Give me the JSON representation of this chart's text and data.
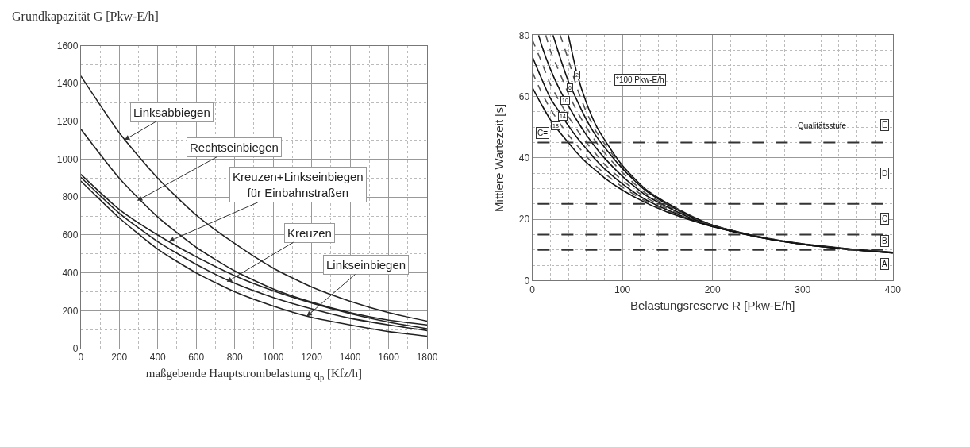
{
  "chart_data": [
    {
      "type": "line",
      "ylabel": "Grundkapazität G [Pkw-E/h]",
      "xlabel": "maßgebende Hauptstrombelastung q$_{p}$ [Kfz/h]",
      "x": [
        0,
        200,
        400,
        600,
        800,
        1000,
        1200,
        1400,
        1600,
        1800
      ],
      "series": [
        {
          "color": "#222222",
          "values": [
            1440,
            1140,
            900,
            705,
            555,
            425,
            325,
            250,
            190,
            145
          ]
        },
        {
          "color": "#222222",
          "values": [
            1160,
            900,
            695,
            535,
            410,
            315,
            245,
            190,
            150,
            125
          ]
        },
        {
          "color": "#222222",
          "values": [
            920,
            735,
            600,
            485,
            385,
            305,
            240,
            185,
            140,
            105
          ]
        },
        {
          "color": "#222222",
          "values": [
            905,
            715,
            565,
            445,
            345,
            270,
            210,
            160,
            125,
            95
          ]
        },
        {
          "color": "#222222",
          "values": [
            885,
            690,
            525,
            400,
            300,
            225,
            165,
            125,
            90,
            65
          ]
        }
      ],
      "annotations": [
        {
          "text": "Linksabbiegen",
          "x": 227,
          "y": 1102
        },
        {
          "text": "Rechtseinbiegen",
          "x": 293,
          "y": 781
        },
        {
          "text": "Kreuzen+Linkseinbiegen\nfür Einbahnstraßen",
          "x": 459,
          "y": 567
        },
        {
          "text": "Kreuzen",
          "x": 759,
          "y": 352
        },
        {
          "text": "Linkseinbiegen",
          "x": 1174,
          "y": 170
        }
      ],
      "xlim": [
        0,
        1800
      ],
      "xticks": [
        0,
        200,
        400,
        600,
        800,
        1000,
        1200,
        1400,
        1600,
        1800
      ],
      "ylim": [
        0,
        1600
      ],
      "yticks": [
        0,
        200,
        400,
        600,
        800,
        1000,
        1200,
        1400,
        1600
      ],
      "grid": true,
      "marker": "none"
    },
    {
      "type": "line",
      "ylabel": "Mittlere Wartezeit [s]",
      "xlabel": "Belastungsreserve R [Pkw-E/h]",
      "series": [
        {
          "color": "#111111",
          "line_style": "solid",
          "x": [
            40,
            50,
            60,
            70,
            80,
            100,
            125,
            150,
            175,
            200,
            250,
            300,
            350,
            400
          ],
          "values": [
            80,
            67,
            58,
            51,
            46,
            37.5,
            30,
            25.2,
            21.3,
            18.1,
            14.4,
            12,
            10.4,
            9.2
          ]
        },
        {
          "color": "#555555",
          "line_style": "dashed",
          "x": [
            31,
            40,
            50,
            60,
            70,
            80,
            100,
            125,
            150,
            175,
            200,
            250,
            300,
            350,
            400
          ],
          "values": [
            80,
            72,
            62.5,
            55,
            49,
            44.7,
            37,
            29.7,
            25,
            21.1,
            18.1,
            14.4,
            12,
            10.4,
            9.2
          ]
        },
        {
          "color": "#111111",
          "line_style": "solid",
          "x": [
            23,
            30,
            40,
            50,
            60,
            70,
            80,
            100,
            125,
            150,
            175,
            200,
            250,
            300,
            350,
            400
          ],
          "values": [
            80,
            73.5,
            65,
            58.5,
            52.5,
            47.5,
            43.5,
            36.5,
            29.5,
            24.8,
            21,
            18,
            14.3,
            11.9,
            10.3,
            9.1
          ]
        },
        {
          "color": "#555555",
          "line_style": "dashed",
          "x": [
            15,
            20,
            30,
            40,
            50,
            60,
            70,
            80,
            100,
            125,
            150,
            175,
            200,
            250,
            300,
            350,
            400
          ],
          "values": [
            80,
            75,
            68,
            61,
            55,
            50,
            45.5,
            41.7,
            35.2,
            28.7,
            24.4,
            20.7,
            17.9,
            14.3,
            11.9,
            10.3,
            9.1
          ]
        },
        {
          "color": "#111111",
          "line_style": "solid",
          "x": [
            7,
            10,
            20,
            30,
            40,
            50,
            60,
            70,
            80,
            100,
            125,
            150,
            175,
            200,
            250,
            300,
            350,
            400
          ],
          "values": [
            80,
            77,
            69,
            62.5,
            57,
            52,
            47.5,
            43.5,
            40,
            34,
            28,
            24,
            20.5,
            17.8,
            14.3,
            11.9,
            10.3,
            9.1
          ]
        },
        {
          "color": "#555555",
          "line_style": "dashed",
          "x": [
            0,
            10,
            20,
            30,
            40,
            50,
            60,
            70,
            80,
            100,
            125,
            150,
            175,
            200,
            250,
            300,
            350,
            400
          ],
          "values": [
            78.5,
            71.5,
            64,
            58.5,
            53.5,
            49,
            45,
            41.5,
            38,
            32.7,
            27.2,
            23.5,
            20.2,
            17.8,
            14.2,
            11.8,
            10.2,
            9
          ]
        },
        {
          "color": "#111111",
          "line_style": "solid",
          "x": [
            0,
            10,
            20,
            30,
            40,
            50,
            60,
            70,
            80,
            100,
            125,
            150,
            175,
            200,
            250,
            300,
            350,
            400
          ],
          "values": [
            73,
            66,
            59.5,
            55,
            50.5,
            46.5,
            43,
            39.5,
            36.5,
            31.5,
            26.5,
            23,
            20,
            17.7,
            14.2,
            11.8,
            10.2,
            9
          ]
        },
        {
          "color": "#555555",
          "line_style": "dashed",
          "x": [
            0,
            10,
            20,
            30,
            40,
            50,
            60,
            70,
            80,
            100,
            125,
            150,
            175,
            200,
            250,
            300,
            350,
            400
          ],
          "values": [
            68,
            61.5,
            56,
            51.5,
            47.5,
            44,
            40.5,
            37.5,
            35,
            30.5,
            26,
            22.6,
            19.9,
            17.6,
            14.2,
            11.8,
            10.2,
            9
          ]
        },
        {
          "color": "#111111",
          "line_style": "solid",
          "x": [
            0,
            10,
            20,
            30,
            40,
            50,
            60,
            70,
            80,
            100,
            125,
            150,
            175,
            200,
            250,
            300,
            350,
            400
          ],
          "values": [
            63,
            57.5,
            52.5,
            48.5,
            45,
            41.5,
            38.5,
            36,
            33.5,
            29.5,
            25.5,
            22.3,
            19.8,
            17.6,
            14.2,
            11.8,
            10.2,
            9
          ]
        }
      ],
      "ref_lines": [
        {
          "axis": "y",
          "value": 45,
          "color": "#333333",
          "line_style": "dashed"
        },
        {
          "axis": "y",
          "value": 25,
          "color": "#333333",
          "line_style": "dashed"
        },
        {
          "axis": "y",
          "value": 15,
          "color": "#333333",
          "line_style": "dashed"
        },
        {
          "axis": "y",
          "value": 10,
          "color": "#333333",
          "line_style": "dashed"
        }
      ],
      "annotations": [
        {
          "text": "2",
          "x": 50,
          "y": 67
        },
        {
          "text": "6",
          "x": 42,
          "y": 63
        },
        {
          "text": "10",
          "x": 36.5,
          "y": 58.7
        },
        {
          "text": "14",
          "x": 33.5,
          "y": 53.5
        },
        {
          "text": "18",
          "x": 26,
          "y": 50.4
        },
        "*100 Pkw-E/h",
        {
          "text": "C=",
          "x": 11,
          "y": 48
        },
        "Qualitätsstufe",
        {
          "text": "E",
          "x": 391,
          "y": 50.6
        },
        {
          "text": "D",
          "x": 391,
          "y": 35
        },
        {
          "text": "C",
          "x": 391,
          "y": 20.2
        },
        {
          "text": "B",
          "x": 391,
          "y": 13
        },
        {
          "text": "A",
          "x": 391,
          "y": 5.3
        }
      ],
      "xlim": [
        0,
        400
      ],
      "xticks": [
        0,
        100,
        200,
        300,
        400
      ],
      "ylim": [
        0,
        80
      ],
      "yticks": [
        0,
        20,
        40,
        60,
        80
      ],
      "grid": true,
      "marker": "none"
    }
  ]
}
